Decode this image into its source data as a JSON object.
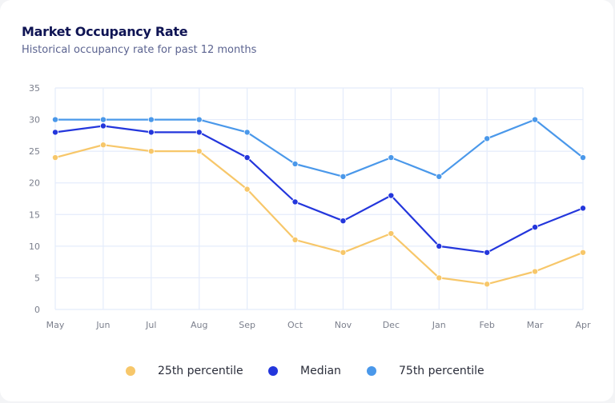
{
  "card": {
    "title": "Market Occupancy Rate",
    "subtitle": "Historical occupancy rate for past 12 months"
  },
  "chart_data": {
    "type": "line",
    "title": "Market Occupancy Rate",
    "subtitle": "Historical occupancy rate for past 12 months",
    "xlabel": "",
    "ylabel": "",
    "categories": [
      "May",
      "Jun",
      "Jul",
      "Aug",
      "Sep",
      "Oct",
      "Nov",
      "Dec",
      "Jan",
      "Feb",
      "Mar",
      "Apr"
    ],
    "ylim": [
      0,
      35
    ],
    "yticks": [
      0,
      5,
      10,
      15,
      20,
      25,
      30,
      35
    ],
    "grid": true,
    "legend_position": "bottom",
    "series": [
      {
        "name": "25th percentile",
        "color": "#f7c76a",
        "values": [
          24,
          26,
          25,
          25,
          19,
          11,
          9,
          12,
          5,
          4,
          6,
          9
        ]
      },
      {
        "name": "Median",
        "color": "#2336dc",
        "values": [
          28,
          29,
          28,
          28,
          24,
          17,
          14,
          18,
          10,
          9,
          13,
          16
        ]
      },
      {
        "name": "75th percentile",
        "color": "#4a98ea",
        "values": [
          30,
          30,
          30,
          30,
          28,
          23,
          21,
          24,
          21,
          27,
          30,
          24
        ]
      }
    ]
  }
}
